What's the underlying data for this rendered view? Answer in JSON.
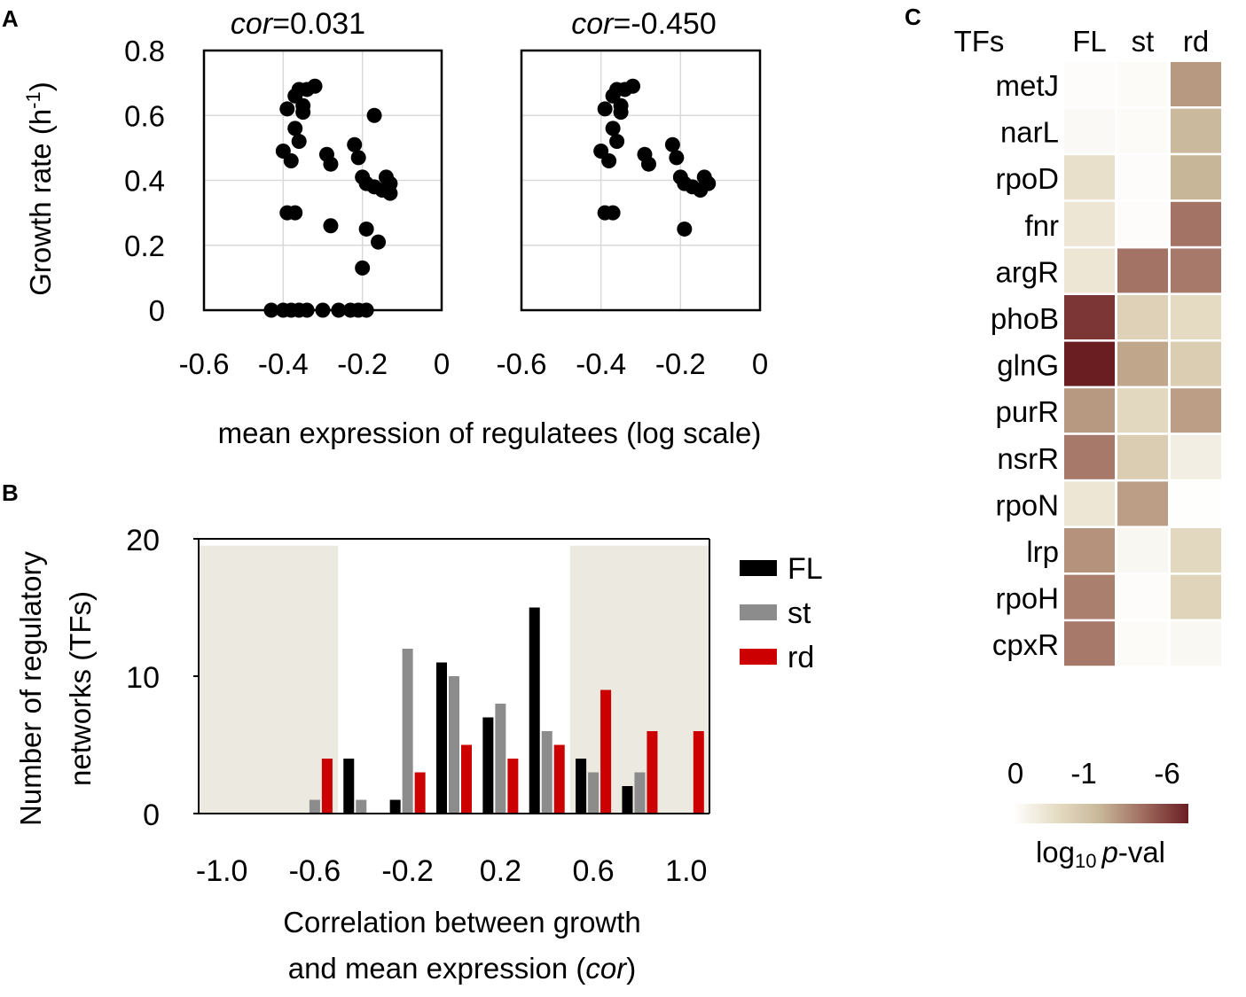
{
  "panels": {
    "a": {
      "letter": "A"
    },
    "b": {
      "letter": "B"
    },
    "c": {
      "letter": "C"
    }
  },
  "chart_data": [
    {
      "id": "A-left",
      "type": "scatter",
      "title_prefix": "cor",
      "title_value": "=0.031",
      "xlabel": "mean expression of regulatees (log scale)",
      "ylabel_main": "Growth rate (h",
      "ylabel_sup": "-1",
      "ylabel_close": ")",
      "xlim": [
        -0.6,
        0
      ],
      "ylim": [
        0,
        0.8
      ],
      "xticks": [
        "-0.6",
        "-0.4",
        "-0.2",
        "0"
      ],
      "yticks": [
        "0",
        "0.2",
        "0.4",
        "0.6",
        "0.8"
      ],
      "points": [
        [
          -0.36,
          0.68
        ],
        [
          -0.34,
          0.68
        ],
        [
          -0.32,
          0.69
        ],
        [
          -0.37,
          0.66
        ],
        [
          -0.35,
          0.63
        ],
        [
          -0.39,
          0.62
        ],
        [
          -0.35,
          0.61
        ],
        [
          -0.37,
          0.56
        ],
        [
          -0.36,
          0.52
        ],
        [
          -0.4,
          0.49
        ],
        [
          -0.38,
          0.46
        ],
        [
          -0.29,
          0.48
        ],
        [
          -0.28,
          0.45
        ],
        [
          -0.22,
          0.51
        ],
        [
          -0.21,
          0.47
        ],
        [
          -0.17,
          0.6
        ],
        [
          -0.2,
          0.41
        ],
        [
          -0.19,
          0.39
        ],
        [
          -0.14,
          0.41
        ],
        [
          -0.13,
          0.39
        ],
        [
          -0.17,
          0.38
        ],
        [
          -0.15,
          0.37
        ],
        [
          -0.13,
          0.36
        ],
        [
          -0.39,
          0.3
        ],
        [
          -0.37,
          0.3
        ],
        [
          -0.28,
          0.26
        ],
        [
          -0.19,
          0.25
        ],
        [
          -0.16,
          0.21
        ],
        [
          -0.2,
          0.13
        ],
        [
          -0.43,
          0
        ],
        [
          -0.4,
          0
        ],
        [
          -0.38,
          0
        ],
        [
          -0.36,
          0
        ],
        [
          -0.34,
          0
        ],
        [
          -0.3,
          0
        ],
        [
          -0.26,
          0
        ],
        [
          -0.23,
          0
        ],
        [
          -0.21,
          0
        ],
        [
          -0.19,
          0
        ]
      ]
    },
    {
      "id": "A-right",
      "type": "scatter",
      "title_prefix": "cor",
      "title_value": "=-0.450",
      "xlim": [
        -0.6,
        0
      ],
      "ylim": [
        0,
        0.8
      ],
      "xticks": [
        "-0.6",
        "-0.4",
        "-0.2",
        "0"
      ],
      "points": [
        [
          -0.36,
          0.68
        ],
        [
          -0.34,
          0.68
        ],
        [
          -0.32,
          0.69
        ],
        [
          -0.37,
          0.66
        ],
        [
          -0.35,
          0.63
        ],
        [
          -0.39,
          0.62
        ],
        [
          -0.35,
          0.61
        ],
        [
          -0.37,
          0.56
        ],
        [
          -0.36,
          0.52
        ],
        [
          -0.4,
          0.49
        ],
        [
          -0.38,
          0.46
        ],
        [
          -0.29,
          0.48
        ],
        [
          -0.28,
          0.45
        ],
        [
          -0.22,
          0.51
        ],
        [
          -0.21,
          0.47
        ],
        [
          -0.2,
          0.41
        ],
        [
          -0.19,
          0.39
        ],
        [
          -0.14,
          0.41
        ],
        [
          -0.13,
          0.39
        ],
        [
          -0.17,
          0.38
        ],
        [
          -0.15,
          0.37
        ],
        [
          -0.39,
          0.3
        ],
        [
          -0.37,
          0.3
        ],
        [
          -0.19,
          0.25
        ]
      ]
    },
    {
      "id": "B",
      "type": "bar",
      "xlabel_line1": "Correlation between growth",
      "xlabel_line2_a": "and mean expression (",
      "xlabel_line2_b": "cor",
      "xlabel_line2_c": ")",
      "ylabel_line1": "Number of regulatory",
      "ylabel_line2": "networks (TFs)",
      "xlim": [
        -1.1,
        1.1
      ],
      "ylim": [
        0,
        20
      ],
      "xticks": [
        "-1.0",
        "-0.6",
        "-0.2",
        "0.2",
        "0.6",
        "1.0"
      ],
      "yticks": [
        "0",
        "10",
        "20"
      ],
      "shaded_ranges": [
        [
          -1.1,
          -0.5
        ],
        [
          0.5,
          1.1
        ]
      ],
      "bin_centers": [
        -1.0,
        -0.8,
        -0.6,
        -0.4,
        -0.2,
        0.0,
        0.2,
        0.4,
        0.6,
        0.8,
        1.0
      ],
      "series": [
        {
          "name": "FL",
          "color": "#000000",
          "values": [
            0,
            0,
            0,
            4,
            1,
            11,
            7,
            15,
            4,
            2,
            0
          ]
        },
        {
          "name": "st",
          "color": "#8c8c8c",
          "values": [
            0,
            0,
            1,
            1,
            12,
            10,
            8,
            6,
            3,
            3,
            0
          ]
        },
        {
          "name": "rd",
          "color": "#cc0000",
          "values": [
            0,
            0,
            4,
            0,
            3,
            5,
            4,
            5,
            9,
            6,
            6
          ]
        }
      ]
    },
    {
      "id": "C",
      "type": "heatmap",
      "row_header": "TFs",
      "columns": [
        "FL",
        "st",
        "rd"
      ],
      "rows": [
        "metJ",
        "narL",
        "rpoD",
        "fnr",
        "argR",
        "phoB",
        "glnG",
        "purR",
        "nsrR",
        "rpoN",
        "lrp",
        "rpoH",
        "cpxR"
      ],
      "values": [
        [
          0.02,
          0.03,
          0.6
        ],
        [
          0.04,
          0.03,
          0.48
        ],
        [
          0.22,
          0.02,
          0.5
        ],
        [
          0.18,
          0.02,
          0.72
        ],
        [
          0.18,
          0.72,
          0.7
        ],
        [
          0.92,
          0.32,
          0.26
        ],
        [
          1.0,
          0.55,
          0.35
        ],
        [
          0.6,
          0.28,
          0.58
        ],
        [
          0.7,
          0.35,
          0.12
        ],
        [
          0.18,
          0.58,
          0.01
        ],
        [
          0.62,
          0.06,
          0.28
        ],
        [
          0.68,
          0.02,
          0.3
        ],
        [
          0.7,
          0.03,
          0.05
        ]
      ],
      "colorbar": {
        "tick_labels": [
          "0",
          "-1",
          "-6"
        ],
        "label_prefix": "log",
        "label_sub": "10",
        "label_italic": "p",
        "label_suffix": "-val",
        "colors": [
          "#ffffff",
          "#e6dcc4",
          "#c8b698",
          "#9e6a5e",
          "#6a1e22"
        ]
      }
    }
  ]
}
